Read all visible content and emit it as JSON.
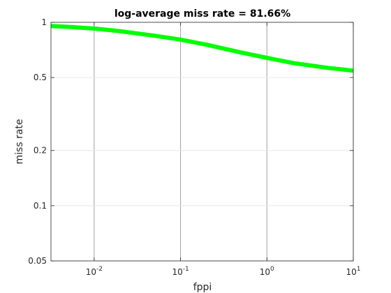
{
  "chart_data": {
    "type": "line",
    "title": "log-average miss rate = 81.66%",
    "xlabel": "fppi",
    "ylabel": "miss rate",
    "x_scale": "log",
    "y_scale": "log",
    "xlim": [
      0.003162,
      10
    ],
    "ylim": [
      0.05,
      1
    ],
    "x_ticks": [
      {
        "value": 0.01,
        "base": "10",
        "exp": "-2"
      },
      {
        "value": 0.1,
        "base": "10",
        "exp": "-1"
      },
      {
        "value": 1,
        "base": "10",
        "exp": "0"
      },
      {
        "value": 10,
        "base": "10",
        "exp": "1"
      }
    ],
    "y_ticks": [
      {
        "value": 0.05,
        "label": "0.05"
      },
      {
        "value": 0.1,
        "label": "0.1"
      },
      {
        "value": 0.2,
        "label": "0.2"
      },
      {
        "value": 0.5,
        "label": "0.5"
      },
      {
        "value": 1,
        "label": "1"
      }
    ],
    "grid": true,
    "series": [
      {
        "color": "#00ff00",
        "x": [
          0.003162,
          0.005,
          0.01,
          0.02,
          0.05,
          0.1,
          0.2,
          0.5,
          1,
          2,
          5,
          10
        ],
        "y": [
          0.955,
          0.945,
          0.925,
          0.895,
          0.845,
          0.805,
          0.755,
          0.685,
          0.64,
          0.6,
          0.565,
          0.545
        ]
      }
    ]
  }
}
